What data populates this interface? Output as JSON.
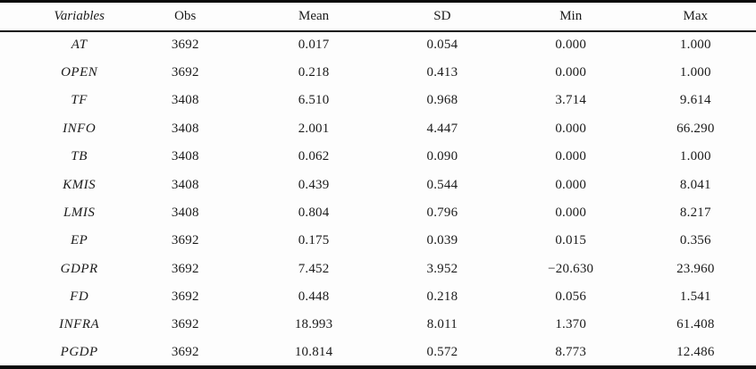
{
  "table": {
    "columns": [
      "Variables",
      "Obs",
      "Mean",
      "SD",
      "Min",
      "Max"
    ],
    "rows": [
      [
        "AT",
        "3692",
        "0.017",
        "0.054",
        "0.000",
        "1.000"
      ],
      [
        "OPEN",
        "3692",
        "0.218",
        "0.413",
        "0.000",
        "1.000"
      ],
      [
        "TF",
        "3408",
        "6.510",
        "0.968",
        "3.714",
        "9.614"
      ],
      [
        "INFO",
        "3408",
        "2.001",
        "4.447",
        "0.000",
        "66.290"
      ],
      [
        "TB",
        "3408",
        "0.062",
        "0.090",
        "0.000",
        "1.000"
      ],
      [
        "KMIS",
        "3408",
        "0.439",
        "0.544",
        "0.000",
        "8.041"
      ],
      [
        "LMIS",
        "3408",
        "0.804",
        "0.796",
        "0.000",
        "8.217"
      ],
      [
        "EP",
        "3692",
        "0.175",
        "0.039",
        "0.015",
        "0.356"
      ],
      [
        "GDPR",
        "3692",
        "7.452",
        "3.952",
        "−20.630",
        "23.960"
      ],
      [
        "FD",
        "3692",
        "0.448",
        "0.218",
        "0.056",
        "1.541"
      ],
      [
        "INFRA",
        "3692",
        "18.993",
        "8.011",
        "1.370",
        "61.408"
      ],
      [
        "PGDP",
        "3692",
        "10.814",
        "0.572",
        "8.773",
        "12.486"
      ]
    ]
  },
  "colors": {
    "text": "#1a1a1a",
    "rule": "#0a0a0a",
    "background": "#fdfdfd"
  }
}
